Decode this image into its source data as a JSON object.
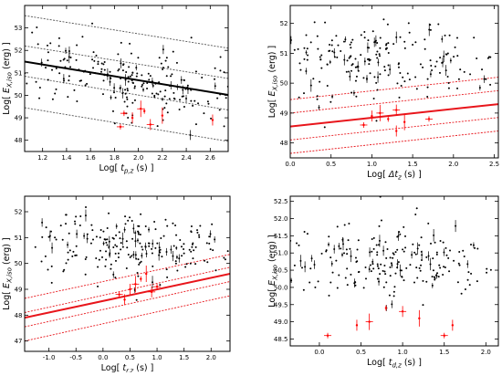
{
  "figure": {
    "panels": [
      {
        "xlabel": "Log[ t_{p,z} (s) ]",
        "ylabel": "Log[ E_{X,iso} (erg) ]"
      },
      {
        "xlabel": "Log[ Δt_{z} (s) ]",
        "ylabel": "Log[ E_{X,iso} (erg) ]"
      },
      {
        "xlabel": "Log[ t_{r,z} (s) ]",
        "ylabel": "Log[ E_{X,iso} (erg) ]"
      },
      {
        "xlabel": "Log[ t_{d,z} (s) ]",
        "ylabel": "Log[ E_{X,iso} (erg) ]"
      }
    ]
  },
  "chart_data": [
    {
      "type": "scatter",
      "xlabel": "Log[ t_{p,z} (s) ]",
      "ylabel": "Log[ E_{X,iso} (erg) ]",
      "xlim": [
        1.05,
        2.75
      ],
      "ylim": [
        47.5,
        54
      ],
      "xticks": [
        1.2,
        1.4,
        1.6,
        1.8,
        2.0,
        2.2,
        2.4,
        2.6
      ],
      "yticks": [
        48,
        49,
        50,
        51,
        52,
        53
      ],
      "grid": false,
      "fit_line": {
        "color": "#000000",
        "points": [
          [
            1.05,
            51.5
          ],
          [
            2.75,
            50.02
          ]
        ]
      },
      "band_lines": {
        "color": "#555555",
        "style": "dotted",
        "lines": [
          [
            [
              1.05,
              53.55
            ],
            [
              2.75,
              52.1
            ]
          ],
          [
            [
              1.05,
              52.2
            ],
            [
              2.75,
              50.75
            ]
          ],
          [
            [
              1.05,
              50.85
            ],
            [
              2.75,
              49.35
            ]
          ],
          [
            [
              1.05,
              49.45
            ],
            [
              2.75,
              47.95
            ]
          ]
        ]
      },
      "series": [
        {
          "color": "#000000",
          "n": 230,
          "x_range": [
            1.2,
            2.55
          ],
          "y_center": [
            51.3,
            50.2
          ],
          "scatter": 0.75
        },
        {
          "color": "#ff0000",
          "points": [
            [
              1.88,
              49.2
            ],
            [
              1.95,
              49.0
            ],
            [
              2.02,
              49.4
            ],
            [
              2.05,
              49.3
            ],
            [
              2.1,
              48.7
            ],
            [
              2.2,
              49.1
            ],
            [
              1.85,
              48.6
            ],
            [
              2.62,
              48.9
            ]
          ]
        }
      ]
    },
    {
      "type": "scatter",
      "xlabel": "Log[ Δt_{z} (s) ]",
      "ylabel": "Log[ E_{X,iso} (erg) ]",
      "xlim": [
        0,
        2.55
      ],
      "ylim": [
        47.5,
        52.6
      ],
      "xticks": [
        0.0,
        0.5,
        1.0,
        1.5,
        2.0,
        2.5
      ],
      "yticks": [
        48,
        49,
        50,
        51,
        52
      ],
      "grid": false,
      "fit_line": {
        "color": "#e8151b",
        "points": [
          [
            0,
            48.55
          ],
          [
            2.55,
            49.3
          ]
        ]
      },
      "band_lines": {
        "color": "#e8151b",
        "style": "dotted",
        "lines": [
          [
            [
              0,
              49.45
            ],
            [
              2.55,
              50.2
            ]
          ],
          [
            [
              0,
              49.0
            ],
            [
              2.55,
              49.75
            ]
          ],
          [
            [
              0,
              48.1
            ],
            [
              2.55,
              48.85
            ]
          ],
          [
            [
              0,
              47.65
            ],
            [
              2.55,
              48.4
            ]
          ]
        ]
      },
      "series": [
        {
          "color": "#000000",
          "n": 230,
          "x_range": [
            0.05,
            2.2
          ],
          "y_center": [
            50.7,
            50.7
          ],
          "scatter": 0.7
        },
        {
          "color": "#ff0000",
          "points": [
            [
              0.9,
              48.6
            ],
            [
              1.0,
              48.9
            ],
            [
              1.1,
              49.0
            ],
            [
              1.2,
              48.8
            ],
            [
              1.3,
              49.1
            ],
            [
              1.4,
              48.7
            ],
            [
              1.7,
              48.8
            ],
            [
              1.3,
              48.4
            ]
          ]
        }
      ]
    },
    {
      "type": "scatter",
      "xlabel": "Log[ t_{r,z} (s) ]",
      "ylabel": "Log[ E_{X,iso} (erg) ]",
      "xlim": [
        -1.45,
        2.35
      ],
      "ylim": [
        46.6,
        52.6
      ],
      "xticks": [
        -1.0,
        -0.5,
        0.0,
        0.5,
        1.0,
        1.5,
        2.0
      ],
      "yticks": [
        47,
        48,
        49,
        50,
        51,
        52
      ],
      "grid": false,
      "fit_line": {
        "color": "#e8151b",
        "points": [
          [
            -1.45,
            47.9
          ],
          [
            2.35,
            49.6
          ]
        ]
      },
      "band_lines": {
        "color": "#e8151b",
        "style": "dotted",
        "lines": [
          [
            [
              -1.45,
              48.65
            ],
            [
              2.35,
              50.35
            ]
          ],
          [
            [
              -1.45,
              48.1
            ],
            [
              2.35,
              49.85
            ]
          ],
          [
            [
              -1.45,
              47.55
            ],
            [
              2.35,
              49.3
            ]
          ],
          [
            [
              -1.45,
              47.0
            ],
            [
              2.35,
              48.75
            ]
          ]
        ]
      },
      "series": [
        {
          "color": "#000000",
          "n": 230,
          "x_range": [
            -0.95,
            2.1
          ],
          "y_center": [
            50.6,
            50.6
          ],
          "scatter": 0.75
        },
        {
          "color": "#ff0000",
          "points": [
            [
              0.3,
              48.8
            ],
            [
              0.5,
              49.0
            ],
            [
              0.6,
              49.2
            ],
            [
              0.7,
              49.4
            ],
            [
              0.9,
              48.9
            ],
            [
              0.8,
              49.6
            ],
            [
              1.0,
              49.1
            ],
            [
              0.4,
              48.6
            ]
          ]
        }
      ]
    },
    {
      "type": "scatter",
      "xlabel": "Log[ t_{d,z} (s) ]",
      "ylabel": "Log[ E_{X,iso} (erg) ]",
      "xlim": [
        -0.35,
        2.15
      ],
      "ylim": [
        48.3,
        52.65
      ],
      "xticks": [
        0.0,
        0.5,
        1.0,
        1.5,
        2.0
      ],
      "yticks": [
        48.5,
        49.0,
        49.5,
        50.0,
        50.5,
        51.0,
        51.5,
        52.0,
        52.5
      ],
      "grid": false,
      "series": [
        {
          "color": "#000000",
          "n": 230,
          "x_range": [
            -0.2,
            2.0
          ],
          "y_center": [
            50.9,
            50.7
          ],
          "scatter": 0.55
        },
        {
          "color": "#ff0000",
          "points": [
            [
              0.1,
              48.6
            ],
            [
              0.45,
              48.9
            ],
            [
              0.6,
              49.0
            ],
            [
              0.8,
              49.4
            ],
            [
              1.0,
              49.3
            ],
            [
              1.2,
              49.1
            ],
            [
              1.5,
              48.6
            ],
            [
              1.6,
              48.9
            ]
          ]
        }
      ]
    }
  ]
}
